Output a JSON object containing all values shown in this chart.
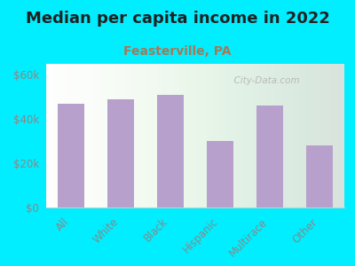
{
  "title": "Median per capita income in 2022",
  "subtitle": "Feasterville, PA",
  "categories": [
    "All",
    "White",
    "Black",
    "Hispanic",
    "Multirace",
    "Other"
  ],
  "values": [
    47000,
    49000,
    51000,
    30000,
    46000,
    28000
  ],
  "bar_color": "#b8a0cc",
  "background_outer": "#00eeff",
  "title_fontsize": 13,
  "subtitle_fontsize": 10,
  "subtitle_color": "#aa7755",
  "ytick_labels": [
    "$0",
    "$20k",
    "$40k",
    "$60k"
  ],
  "ytick_values": [
    0,
    20000,
    40000,
    60000
  ],
  "ylim": [
    0,
    65000
  ],
  "watermark": "  City-Data.com",
  "tick_label_color": "#888888",
  "title_color": "#222222"
}
